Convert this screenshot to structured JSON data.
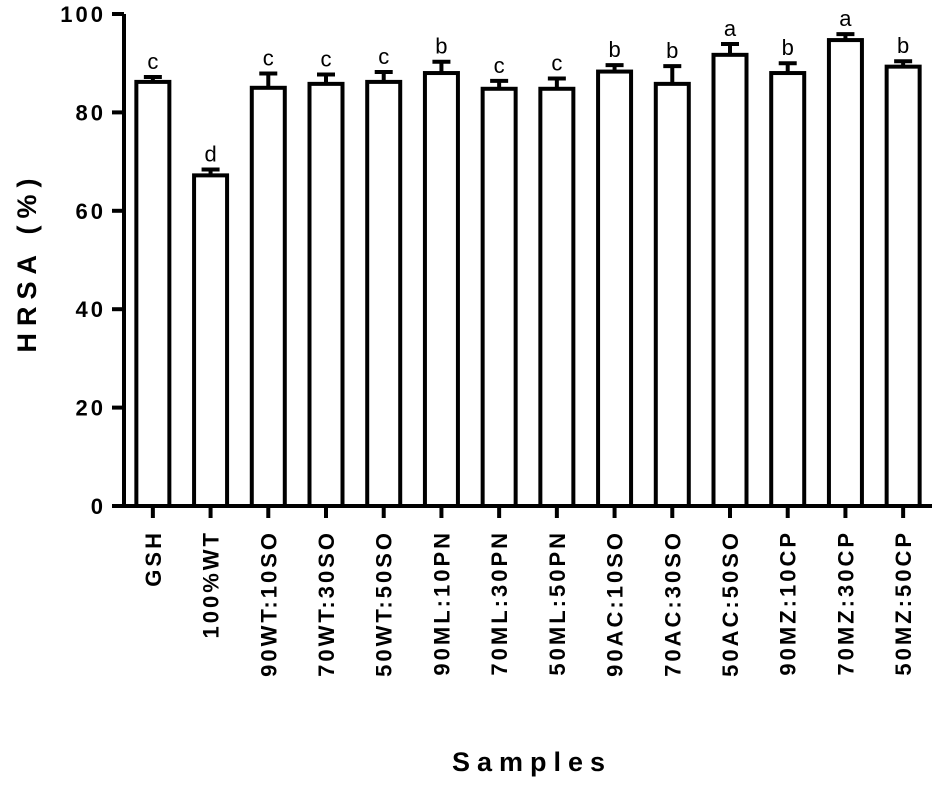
{
  "chart_data": {
    "type": "bar",
    "xlabel": "Samples",
    "ylabel": "HRSA (%)",
    "ylim": [
      0,
      100
    ],
    "yticks": [
      0,
      20,
      40,
      60,
      80,
      100
    ],
    "grid": false,
    "categories": [
      "GSH",
      "100%WT",
      "90WT:10SO",
      "70WT:30SO",
      "50WT:50SO",
      "90ML:10PN",
      "70ML:30PN",
      "50ML:50PN",
      "90AC:10SO",
      "70AC:30SO",
      "50AC:50SO",
      "90MZ:10CP",
      "70MZ:30CP",
      "50MZ:50CP"
    ],
    "values": [
      86.2,
      67.2,
      85,
      85.8,
      86.2,
      88,
      84.8,
      84.8,
      88.3,
      85.8,
      91.7,
      88,
      94.7,
      89.3
    ],
    "errors": [
      1.0,
      1.2,
      2.9,
      1.9,
      2.0,
      2.3,
      1.6,
      2.1,
      1.3,
      3.6,
      2.2,
      2.0,
      1.2,
      1.1
    ],
    "significance": [
      "c",
      "d",
      "c",
      "c",
      "c",
      "b",
      "c",
      "c",
      "b",
      "b",
      "a",
      "b",
      "a",
      "b"
    ]
  }
}
